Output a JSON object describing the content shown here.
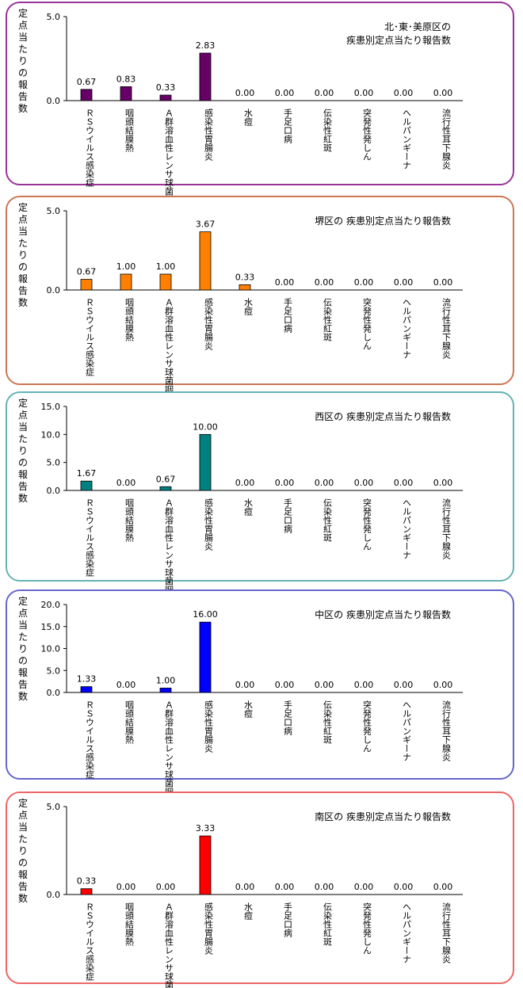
{
  "y_axis_label": "定点当たりの報告数",
  "chart_data": [
    {
      "type": "bar",
      "title_lines": [
        "北･東･美原区の",
        "疾患別定点当たり報告数"
      ],
      "color": "#660066",
      "ylim": [
        0,
        5
      ],
      "yticks": [
        "0.0",
        "5.0"
      ],
      "categories": [
        "ＲＳウイルス感染症",
        "咽頭結膜熱",
        "Ａ群溶血性レンサ球菌咽頭炎",
        "感染性胃腸炎",
        "水痘",
        "手足口病",
        "伝染性紅斑",
        "突発性発しん",
        "ヘルパンギーナ",
        "流行性耳下腺炎"
      ],
      "values": [
        0.67,
        0.83,
        0.33,
        2.83,
        0.0,
        0.0,
        0.0,
        0.0,
        0.0,
        0.0
      ],
      "value_labels": [
        "0.67",
        "0.83",
        "0.33",
        "2.83",
        "0.00",
        "0.00",
        "0.00",
        "0.00",
        "0.00",
        "0.00"
      ],
      "border_color": "#993399"
    },
    {
      "type": "bar",
      "title_lines": [
        "堺区の 疾患別定点当たり報告数"
      ],
      "color": "#ff8000",
      "ylim": [
        0,
        5
      ],
      "yticks": [
        "0.0",
        "5.0"
      ],
      "categories": [
        "ＲＳウイルス感染症",
        "咽頭結膜熱",
        "Ａ群溶血性レンサ球菌咽頭炎",
        "感染性胃腸炎",
        "水痘",
        "手足口病",
        "伝染性紅斑",
        "突発性発しん",
        "ヘルパンギーナ",
        "流行性耳下腺炎"
      ],
      "values": [
        0.67,
        1.0,
        1.0,
        3.67,
        0.33,
        0.0,
        0.0,
        0.0,
        0.0,
        0.0
      ],
      "value_labels": [
        "0.67",
        "1.00",
        "1.00",
        "3.67",
        "0.33",
        "0.00",
        "0.00",
        "0.00",
        "0.00",
        "0.00"
      ],
      "border_color": "#cc7755"
    },
    {
      "type": "bar",
      "title_lines": [
        "西区の 疾患別定点当たり報告数"
      ],
      "color": "#008080",
      "ylim": [
        0,
        15
      ],
      "yticks": [
        "0.0",
        "5.0",
        "10.0",
        "15.0"
      ],
      "categories": [
        "ＲＳウイルス感染症",
        "咽頭結膜熱",
        "Ａ群溶血性レンサ球菌咽頭炎",
        "感染性胃腸炎",
        "水痘",
        "手足口病",
        "伝染性紅斑",
        "突発性発しん",
        "ヘルパンギーナ",
        "流行性耳下腺炎"
      ],
      "values": [
        1.67,
        0.0,
        0.67,
        10.0,
        0.0,
        0.0,
        0.0,
        0.0,
        0.0,
        0.0
      ],
      "value_labels": [
        "1.67",
        "0.00",
        "0.67",
        "10.00",
        "0.00",
        "0.00",
        "0.00",
        "0.00",
        "0.00",
        "0.00"
      ],
      "border_color": "#66b3b3"
    },
    {
      "type": "bar",
      "title_lines": [
        "中区の 疾患別定点当たり報告数"
      ],
      "color": "#0000ff",
      "ylim": [
        0,
        20
      ],
      "yticks": [
        "0.0",
        "5.0",
        "10.0",
        "15.0",
        "20.0"
      ],
      "categories": [
        "ＲＳウイルス感染症",
        "咽頭結膜熱",
        "Ａ群溶血性レンサ球菌咽頭炎",
        "感染性胃腸炎",
        "水痘",
        "手足口病",
        "伝染性紅斑",
        "突発性発しん",
        "ヘルパンギーナ",
        "流行性耳下腺炎"
      ],
      "values": [
        1.33,
        0.0,
        1.0,
        16.0,
        0.0,
        0.0,
        0.0,
        0.0,
        0.0,
        0.0
      ],
      "value_labels": [
        "1.33",
        "0.00",
        "1.00",
        "16.00",
        "0.00",
        "0.00",
        "0.00",
        "0.00",
        "0.00",
        "0.00"
      ],
      "border_color": "#6666cc"
    },
    {
      "type": "bar",
      "title_lines": [
        "南区の 疾患別定点当たり報告数"
      ],
      "color": "#ff0000",
      "ylim": [
        0,
        5
      ],
      "yticks": [
        "0.0",
        "5.0"
      ],
      "categories": [
        "ＲＳウイルス感染症",
        "咽頭結膜熱",
        "Ａ群溶血性レンサ球菌咽頭炎",
        "感染性胃腸炎",
        "水痘",
        "手足口病",
        "伝染性紅斑",
        "突発性発しん",
        "ヘルパンギーナ",
        "流行性耳下腺炎"
      ],
      "values": [
        0.33,
        0.0,
        0.0,
        3.33,
        0.0,
        0.0,
        0.0,
        0.0,
        0.0,
        0.0
      ],
      "value_labels": [
        "0.33",
        "0.00",
        "0.00",
        "3.33",
        "0.00",
        "0.00",
        "0.00",
        "0.00",
        "0.00",
        "0.00"
      ],
      "border_color": "#ee6666"
    }
  ]
}
